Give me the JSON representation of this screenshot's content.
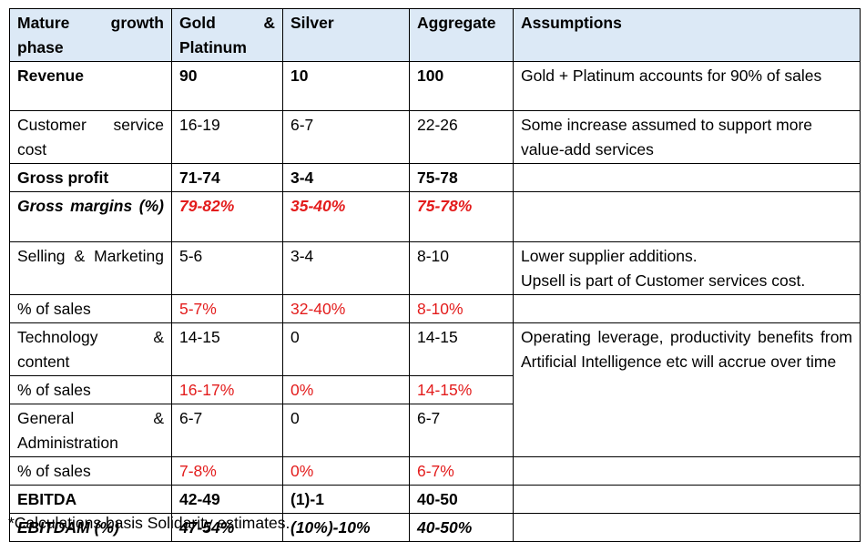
{
  "header": [
    "Mature growth phase",
    "Gold & Platinum",
    "Silver",
    "Aggregate",
    "Assumptions"
  ],
  "rows": {
    "revenue": {
      "label": "Revenue",
      "gold": "90",
      "silver": "10",
      "agg": "100",
      "assumption": "Gold + Platinum accounts for 90% of sales"
    },
    "cust": {
      "label": "Customer service cost",
      "gold": "16-19",
      "silver": "6-7",
      "agg": "22-26",
      "assumption": "Some increase assumed to support more value-add services"
    },
    "gp": {
      "label": "Gross profit",
      "gold": "71-74",
      "silver": "3-4",
      "agg": "75-78"
    },
    "gm": {
      "label": "Gross margins (%)",
      "gold": "79-82%",
      "silver": "35-40%",
      "agg": "75-78%"
    },
    "sm": {
      "label": "Selling & Marketing",
      "gold": "5-6",
      "silver": "3-4",
      "agg": "8-10",
      "assumption_1": "Lower supplier additions.",
      "assumption_2": "Upsell is part of Customer services cost."
    },
    "sm_pct": {
      "label": "% of sales",
      "gold": "5-7%",
      "silver": "32-40%",
      "agg": "8-10%"
    },
    "tech": {
      "label": "Technology & content",
      "gold": "14-15",
      "silver": "0",
      "agg": "14-15",
      "assumption": "Operating leverage, productivity benefits from Artificial Intelligence etc will accrue over time"
    },
    "tech_pct": {
      "label": "% of sales",
      "gold": "16-17%",
      "silver": "0%",
      "agg": "14-15%"
    },
    "ga": {
      "label": "General & Administration",
      "gold": "6-7",
      "silver": "0",
      "agg": "6-7"
    },
    "ga_pct": {
      "label": "% of sales",
      "gold": "7-8%",
      "silver": "0%",
      "agg": "6-7%"
    },
    "ebitda": {
      "label": "EBITDA",
      "gold": "42-49",
      "silver": "(1)-1",
      "agg": "40-50"
    },
    "ebitdam": {
      "label": "EBITDAM (%)",
      "gold": "47-54%",
      "silver": "(10%)-10%",
      "agg": "40-50%"
    }
  },
  "footnote": "*Calculations basis Solidarity estimates.",
  "colors": {
    "header_bg": "#dce9f6",
    "highlight_red": "#e31c1c"
  }
}
